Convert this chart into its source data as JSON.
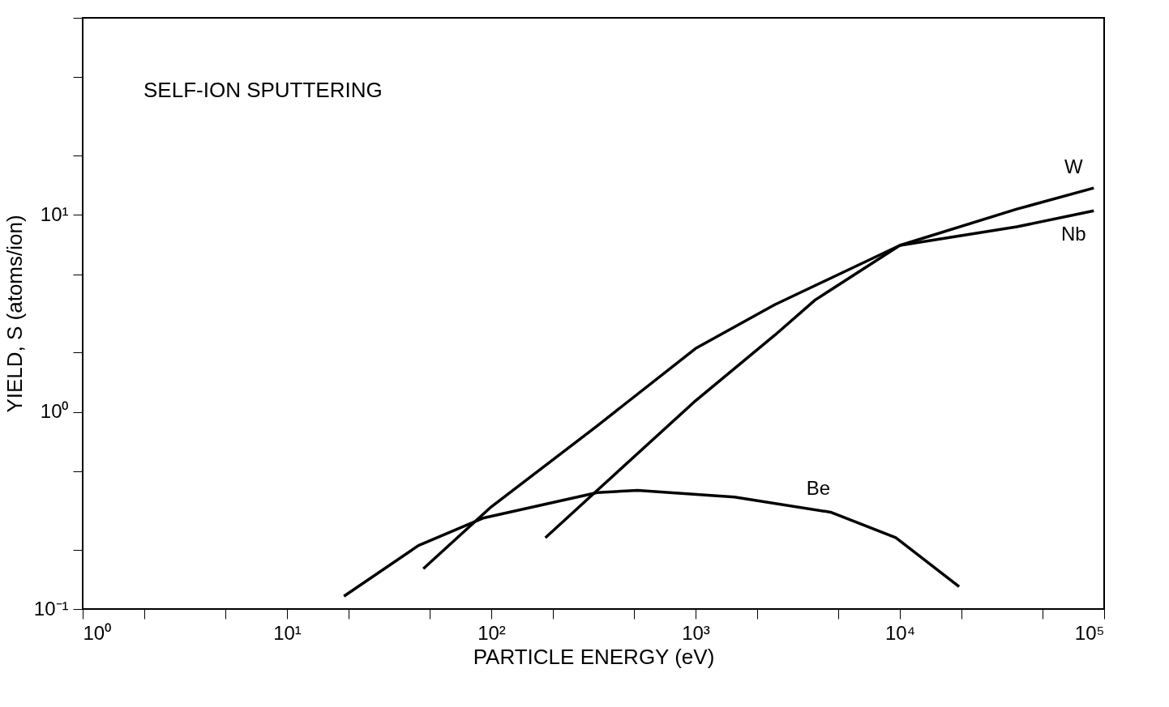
{
  "chart_data": {
    "type": "line",
    "title": "SELF-ION SPUTTERING",
    "xlabel": "PARTICLE ENERGY (eV)",
    "ylabel": "YIELD, S (atoms/ion)",
    "log": "xy",
    "grid": false,
    "legend": false,
    "marker": "none",
    "line_style": "solid",
    "xlim": [
      1,
      100000
    ],
    "ylim": [
      0.1,
      100
    ],
    "xticks": [
      {
        "value": 1,
        "label": "10⁰"
      },
      {
        "value": 2,
        "label": null
      },
      {
        "value": 5,
        "label": null
      },
      {
        "value": 10,
        "label": "10¹"
      },
      {
        "value": 20,
        "label": null
      },
      {
        "value": 50,
        "label": null
      },
      {
        "value": 100,
        "label": "10²"
      },
      {
        "value": 200,
        "label": null
      },
      {
        "value": 500,
        "label": null
      },
      {
        "value": 1000,
        "label": "10³"
      },
      {
        "value": 2000,
        "label": null
      },
      {
        "value": 5000,
        "label": null
      },
      {
        "value": 10000,
        "label": "10⁴"
      },
      {
        "value": 20000,
        "label": null
      },
      {
        "value": 50000,
        "label": null
      },
      {
        "value": 100000,
        "label": "10⁵"
      }
    ],
    "yticks": [
      {
        "value": 0.1,
        "label": "10⁻¹"
      },
      {
        "value": 0.2,
        "label": null
      },
      {
        "value": 0.5,
        "label": null
      },
      {
        "value": 1,
        "label": "10⁰"
      },
      {
        "value": 2,
        "label": null
      },
      {
        "value": 5,
        "label": null
      },
      {
        "value": 10,
        "label": "10¹"
      },
      {
        "value": 20,
        "label": null
      },
      {
        "value": 50,
        "label": null
      },
      {
        "value": 100,
        "label": null
      }
    ],
    "series": [
      {
        "name": "W",
        "color": "#000000",
        "x": [
          184,
          330,
          1000,
          2440,
          3850,
          10000,
          37400,
          89000
        ],
        "values": [
          0.23,
          0.4,
          1.14,
          2.45,
          3.7,
          7.0,
          10.7,
          13.7
        ]
      },
      {
        "name": "Nb",
        "color": "#000000",
        "x": [
          46.5,
          100,
          330,
          1000,
          2440,
          10000,
          37400,
          89000
        ],
        "values": [
          0.16,
          0.33,
          0.85,
          2.1,
          3.5,
          7.0,
          8.7,
          10.5
        ]
      },
      {
        "name": "Be",
        "color": "#000000",
        "x": [
          19,
          44,
          92,
          330,
          520,
          1550,
          4580,
          9550,
          19500
        ],
        "values": [
          0.116,
          0.21,
          0.29,
          0.39,
          0.4,
          0.37,
          0.31,
          0.23,
          0.13
        ]
      }
    ]
  }
}
